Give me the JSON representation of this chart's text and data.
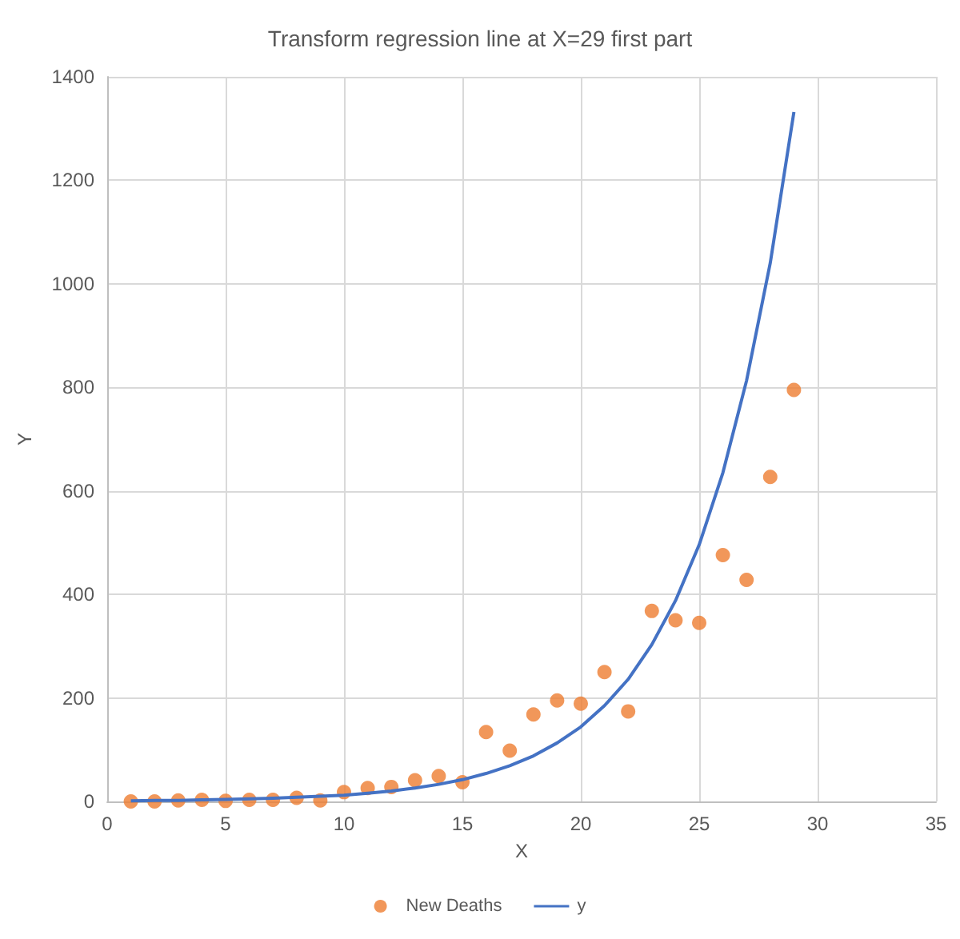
{
  "chart_data": {
    "type": "scatter",
    "title": "Transform regression line at X=29 first part",
    "xlabel": "X",
    "ylabel": "Y",
    "xlim": [
      0,
      35
    ],
    "xticks": [
      0,
      5,
      10,
      15,
      20,
      25,
      30,
      35
    ],
    "ylim": [
      0,
      1400
    ],
    "yticks": [
      0,
      200,
      400,
      600,
      800,
      1000,
      1200,
      1400
    ],
    "grid": true,
    "legend": "bottom",
    "series": [
      {
        "name": "New Deaths",
        "marker": "circle",
        "color": "#ed7d31",
        "x": [
          1,
          2,
          3,
          4,
          5,
          6,
          7,
          8,
          9,
          10,
          11,
          12,
          13,
          14,
          15,
          16,
          17,
          18,
          19,
          20,
          21,
          22,
          23,
          24,
          25,
          26,
          27,
          28,
          29
        ],
        "values": [
          0,
          0,
          2,
          3,
          1,
          3,
          3,
          7,
          2,
          18,
          26,
          28,
          41,
          49,
          37,
          134,
          98,
          168,
          195,
          189,
          250,
          174,
          368,
          350,
          345,
          476,
          428,
          627,
          795
        ]
      },
      {
        "name": "y",
        "type": "line",
        "marker": "none",
        "line_style": "solid",
        "color": "#4472c4",
        "x": [
          1,
          2,
          3,
          4,
          5,
          6,
          7,
          8,
          9,
          10,
          11,
          12,
          13,
          14,
          15,
          16,
          17,
          18,
          19,
          20,
          21,
          22,
          23,
          24,
          25,
          26,
          27,
          28,
          29
        ],
        "values": [
          1,
          2,
          2,
          3,
          4,
          5,
          6,
          8,
          10,
          12,
          16,
          20,
          26,
          33,
          42,
          54,
          69,
          88,
          113,
          144,
          185,
          236,
          303,
          388,
          496,
          635,
          813,
          1040,
          1332
        ]
      }
    ]
  }
}
